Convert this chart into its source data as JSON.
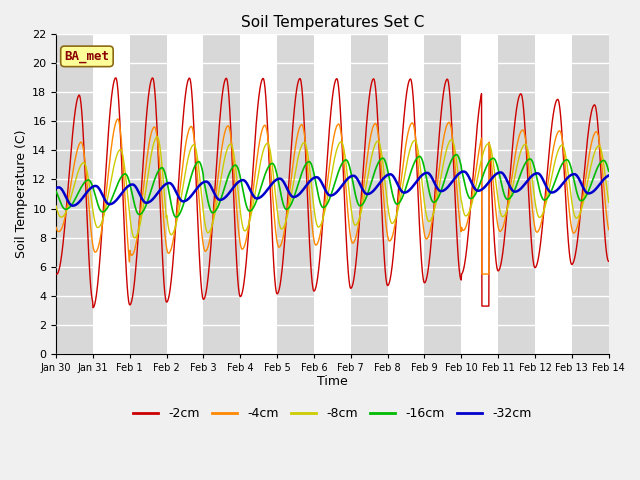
{
  "title": "Soil Temperatures Set C",
  "xlabel": "Time",
  "ylabel": "Soil Temperature (C)",
  "annotation": "BA_met",
  "ylim": [
    0,
    22
  ],
  "yticks": [
    0,
    2,
    4,
    6,
    8,
    10,
    12,
    14,
    16,
    18,
    20,
    22
  ],
  "xtick_labels": [
    "Jan 30",
    "Jan 31",
    "Feb 1",
    "Feb 2",
    "Feb 3",
    "Feb 4",
    "Feb 5",
    "Feb 6",
    "Feb 7",
    "Feb 8",
    "Feb 9",
    "Feb 10",
    "Feb 11",
    "Feb 12",
    "Feb 13",
    "Feb 14"
  ],
  "legend_labels": [
    "-2cm",
    "-4cm",
    "-8cm",
    "-16cm",
    "-32cm"
  ],
  "colors": [
    "#cc0000",
    "#ff8800",
    "#cccc00",
    "#00bb00",
    "#0000cc"
  ],
  "band_color_light": "#d8d8d8",
  "band_color_dark": "#f0f0f0",
  "fig_bg": "#f0f0f0",
  "n_days": 15,
  "n_points": 1440
}
